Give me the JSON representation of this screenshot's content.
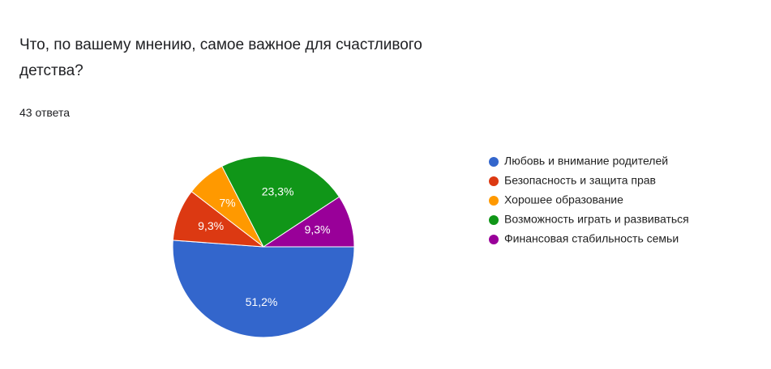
{
  "chart_data": {
    "type": "pie",
    "title": "Что, по вашему мнению, самое важное для счастливого детства?",
    "subtitle": "43 ответа",
    "categories": [
      "Любовь и внимание родителей",
      "Безопасность и защита прав",
      "Хорошее образование",
      "Возможность играть и развиваться",
      "Финансовая стабильность семьи"
    ],
    "values": [
      51.2,
      9.3,
      7,
      23.3,
      9.3
    ],
    "value_labels": [
      "51,2%",
      "9,3%",
      "7%",
      "23,3%",
      "9,3%"
    ],
    "colors": [
      "#3366cc",
      "#dc3912",
      "#ff9900",
      "#109618",
      "#990099"
    ],
    "legend": "right"
  }
}
